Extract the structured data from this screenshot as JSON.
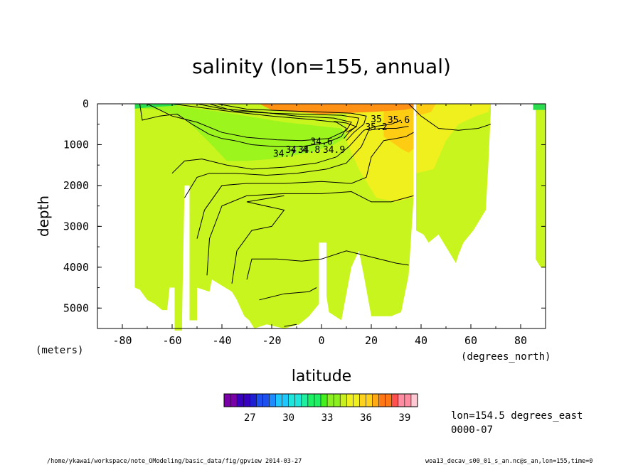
{
  "chart_data": {
    "type": "heatmap",
    "title": "salinity (lon=155, annual)",
    "xlabel": "latitude",
    "ylabel": "depth",
    "x_unit_label": "(degrees_north)",
    "y_unit_label": "(meters)",
    "xlim": [
      -90,
      90
    ],
    "ylim": [
      5500,
      0
    ],
    "x_ticks": [
      -80,
      -60,
      -40,
      -20,
      0,
      20,
      40,
      60,
      80
    ],
    "y_ticks": [
      0,
      1000,
      2000,
      3000,
      4000,
      5000
    ],
    "colorbar": {
      "min": 25,
      "max": 40,
      "step": 0.5,
      "tick_labels": [
        "27",
        "30",
        "33",
        "36",
        "39"
      ],
      "tick_values": [
        27,
        30,
        33,
        36,
        39
      ]
    },
    "contour_labels": [
      {
        "text": "35.6",
        "lat": 31,
        "depth": 470
      },
      {
        "text": "35",
        "lat": 22,
        "depth": 450
      },
      {
        "text": "35.2",
        "lat": 22,
        "depth": 640
      },
      {
        "text": "34.6",
        "lat": 0,
        "depth": 1000
      },
      {
        "text": "34.7",
        "lat": -15,
        "depth": 1300
      },
      {
        "text": "34.4",
        "lat": -10,
        "depth": 1200
      },
      {
        "text": "34.9",
        "lat": 5,
        "depth": 1200
      },
      {
        "text": "34.8",
        "lat": -5,
        "depth": 1200
      }
    ],
    "info": [
      "lon=154.5 degrees_east",
      "0000-07"
    ],
    "footer_left": "/home/ykawai/workspace/note_OModeling/basic_data/fig/gpview   2014-03-27",
    "footer_right": "woa13_decav_s00_01_s_an.nc@s_an,lon=155,time=0"
  },
  "colors": {
    "fresh_intermediate": "#9df51e",
    "deep_water": "#c9f51e",
    "subtropical_upper": "#f0f01e",
    "warm_salty": "#ffcc14",
    "surface_max": "#ff9114",
    "high_latitude_surface": "#2bdc4f"
  }
}
